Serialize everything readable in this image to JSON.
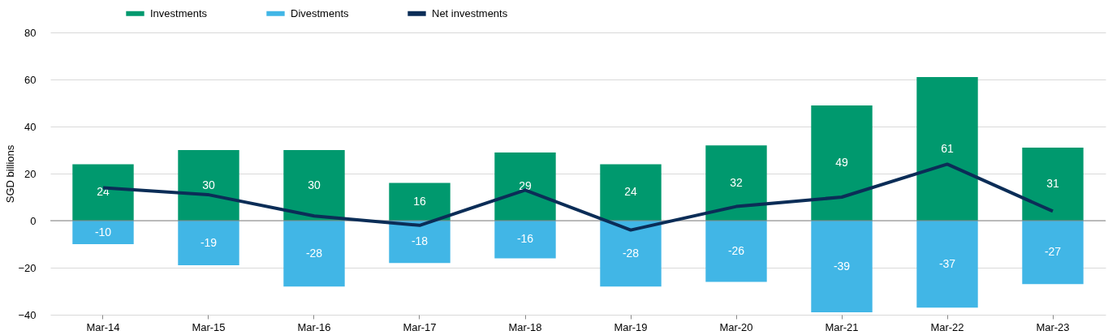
{
  "chart_data": {
    "type": "bar",
    "ylabel": "SGD billions",
    "stacked": true,
    "categories": [
      "Mar-14",
      "Mar-15",
      "Mar-16",
      "Mar-17",
      "Mar-18",
      "Mar-19",
      "Mar-20",
      "Mar-21",
      "Mar-22",
      "Mar-23"
    ],
    "series": [
      {
        "name": "Investments",
        "color": "#00996e",
        "values": [
          24,
          30,
          30,
          16,
          29,
          24,
          32,
          49,
          61,
          31
        ],
        "value_labels": [
          "24",
          "30",
          "30",
          "16",
          "29",
          "24",
          "32",
          "49",
          "61",
          "31"
        ]
      },
      {
        "name": "Divestments",
        "color": "#41b6e6",
        "values": [
          -10,
          -19,
          -28,
          -18,
          -16,
          -28,
          -26,
          -39,
          -37,
          -27
        ],
        "value_labels": [
          "-10",
          "-19",
          "-28",
          "-18",
          "-16",
          "-28",
          "-26",
          "-39",
          "-37",
          "-27"
        ]
      },
      {
        "name": "Net investments",
        "type": "line",
        "color": "#0b2d57",
        "values": [
          14,
          11,
          2,
          -2,
          13,
          -4,
          6,
          10,
          24,
          4
        ]
      }
    ],
    "ylim": [
      -40,
      80
    ],
    "yticks": [
      -40,
      -20,
      0,
      20,
      40,
      60,
      80
    ],
    "grid": "y",
    "legend": "top left",
    "marker": "none",
    "line_style": "solid"
  }
}
